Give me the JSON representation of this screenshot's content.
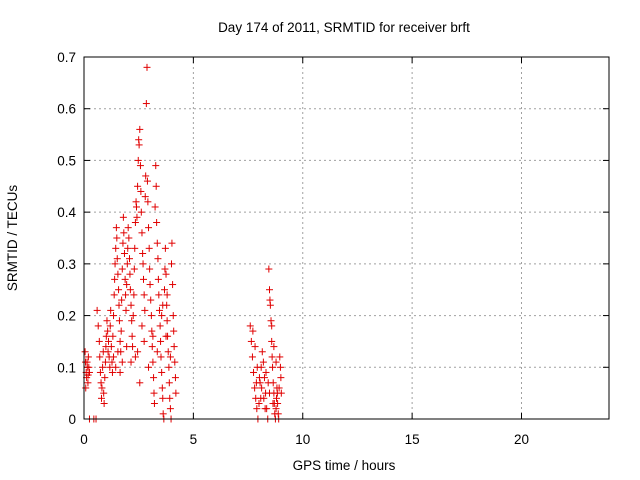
{
  "chart_data": {
    "type": "scatter",
    "title": "Day 174 of 2011, SRMTID for receiver brft",
    "xlabel": "GPS time / hours",
    "ylabel": "SRMTID / TECUs",
    "xlim": [
      0,
      24
    ],
    "ylim": [
      0,
      0.7
    ],
    "xticks": [
      0,
      5,
      10,
      15,
      20
    ],
    "xtick_labels": [
      "0",
      "5",
      "10",
      "15",
      "20"
    ],
    "yticks": [
      0,
      0.1,
      0.2,
      0.3,
      0.4,
      0.5,
      0.6,
      0.7
    ],
    "ytick_labels": [
      "0",
      "0.1",
      "0.2",
      "0.3",
      "0.4",
      "0.5",
      "0.6",
      "0.7"
    ],
    "grid": true,
    "marker": "+",
    "color": "#e00000",
    "series": [
      {
        "name": "SRMTID",
        "points": [
          [
            0.05,
            0.13
          ],
          [
            0.07,
            0.11
          ],
          [
            0.1,
            0.09
          ],
          [
            0.12,
            0.08
          ],
          [
            0.15,
            0.1
          ],
          [
            0.18,
            0.07
          ],
          [
            0.2,
            0.12
          ],
          [
            0.22,
            0.1
          ],
          [
            0.25,
            0.09
          ],
          [
            0.08,
            0.06
          ],
          [
            0.14,
            0.11
          ],
          [
            0.19,
            0.085
          ],
          [
            0.25,
            0
          ],
          [
            0.45,
            0
          ],
          [
            0.55,
            0
          ],
          [
            0.6,
            0.21
          ],
          [
            0.65,
            0.18
          ],
          [
            0.7,
            0.15
          ],
          [
            0.72,
            0.12
          ],
          [
            0.75,
            0.09
          ],
          [
            0.78,
            0.07
          ],
          [
            0.8,
            0.04
          ],
          [
            0.82,
            0.06
          ],
          [
            0.85,
            0.1
          ],
          [
            0.88,
            0.13
          ],
          [
            0.9,
            0.05
          ],
          [
            0.92,
            0.03
          ],
          [
            0.95,
            0.08
          ],
          [
            0.98,
            0.11
          ],
          [
            1.0,
            0.14
          ],
          [
            1.02,
            0.16
          ],
          [
            1.05,
            0.19
          ],
          [
            1.08,
            0.17
          ],
          [
            1.1,
            0.13
          ],
          [
            1.12,
            0.15
          ],
          [
            1.15,
            0.12
          ],
          [
            1.18,
            0.1
          ],
          [
            1.2,
            0.18
          ],
          [
            1.22,
            0.21
          ],
          [
            1.25,
            0.14
          ],
          [
            1.28,
            0.11
          ],
          [
            1.3,
            0.09
          ],
          [
            1.32,
            0.16
          ],
          [
            1.35,
            0.2
          ],
          [
            1.38,
            0.24
          ],
          [
            1.4,
            0.27
          ],
          [
            1.42,
            0.3
          ],
          [
            1.45,
            0.33
          ],
          [
            1.48,
            0.37
          ],
          [
            1.5,
            0.35
          ],
          [
            1.52,
            0.31
          ],
          [
            1.55,
            0.28
          ],
          [
            1.58,
            0.25
          ],
          [
            1.6,
            0.22
          ],
          [
            1.62,
            0.19
          ],
          [
            1.65,
            0.15
          ],
          [
            1.68,
            0.13
          ],
          [
            1.7,
            0.17
          ],
          [
            1.72,
            0.23
          ],
          [
            1.75,
            0.29
          ],
          [
            1.78,
            0.34
          ],
          [
            1.8,
            0.39
          ],
          [
            1.82,
            0.36
          ],
          [
            1.85,
            0.32
          ],
          [
            1.88,
            0.27
          ],
          [
            1.9,
            0.24
          ],
          [
            1.92,
            0.21
          ],
          [
            1.95,
            0.26
          ],
          [
            1.98,
            0.3
          ],
          [
            2.0,
            0.33
          ],
          [
            2.02,
            0.37
          ],
          [
            2.05,
            0.35
          ],
          [
            2.08,
            0.31
          ],
          [
            2.1,
            0.28
          ],
          [
            2.12,
            0.25
          ],
          [
            2.15,
            0.22
          ],
          [
            2.18,
            0.19
          ],
          [
            2.2,
            0.16
          ],
          [
            2.22,
            0.14
          ],
          [
            2.25,
            0.2
          ],
          [
            2.28,
            0.24
          ],
          [
            2.3,
            0.29
          ],
          [
            2.32,
            0.33
          ],
          [
            2.35,
            0.38
          ],
          [
            2.38,
            0.42
          ],
          [
            2.4,
            0.41
          ],
          [
            2.42,
            0.39
          ],
          [
            2.45,
            0.45
          ],
          [
            2.48,
            0.5
          ],
          [
            2.5,
            0.54
          ],
          [
            2.52,
            0.53
          ],
          [
            2.55,
            0.56
          ],
          [
            2.58,
            0.49
          ],
          [
            2.6,
            0.44
          ],
          [
            2.62,
            0.4
          ],
          [
            2.65,
            0.36
          ],
          [
            2.68,
            0.32
          ],
          [
            2.7,
            0.3
          ],
          [
            2.72,
            0.27
          ],
          [
            2.75,
            0.24
          ],
          [
            2.78,
            0.21
          ],
          [
            2.8,
            0.43
          ],
          [
            2.82,
            0.47
          ],
          [
            2.85,
            0.61
          ],
          [
            2.88,
            0.68
          ],
          [
            2.9,
            0.46
          ],
          [
            2.92,
            0.42
          ],
          [
            2.95,
            0.37
          ],
          [
            2.98,
            0.33
          ],
          [
            3.0,
            0.29
          ],
          [
            3.02,
            0.26
          ],
          [
            3.05,
            0.23
          ],
          [
            3.08,
            0.2
          ],
          [
            3.1,
            0.17
          ],
          [
            3.12,
            0.14
          ],
          [
            3.15,
            0.11
          ],
          [
            3.18,
            0.08
          ],
          [
            3.2,
            0.05
          ],
          [
            3.22,
            0.03
          ],
          [
            3.25,
            0.41
          ],
          [
            3.28,
            0.49
          ],
          [
            3.3,
            0.45
          ],
          [
            3.32,
            0.38
          ],
          [
            3.35,
            0.34
          ],
          [
            3.38,
            0.31
          ],
          [
            3.4,
            0.27
          ],
          [
            3.42,
            0.24
          ],
          [
            3.45,
            0.21
          ],
          [
            3.48,
            0.18
          ],
          [
            3.5,
            0.15
          ],
          [
            3.52,
            0.12
          ],
          [
            3.55,
            0.09
          ],
          [
            3.58,
            0.06
          ],
          [
            3.6,
            0.04
          ],
          [
            3.62,
            0.01
          ],
          [
            3.65,
            0.0
          ],
          [
            3.68,
            0.25
          ],
          [
            3.7,
            0.29
          ],
          [
            3.72,
            0.33
          ],
          [
            3.75,
            0.28
          ],
          [
            3.78,
            0.22
          ],
          [
            3.8,
            0.19
          ],
          [
            3.82,
            0.16
          ],
          [
            3.85,
            0.13
          ],
          [
            3.88,
            0.1
          ],
          [
            3.9,
            0.07
          ],
          [
            3.92,
            0.04
          ],
          [
            3.95,
            0.02
          ],
          [
            3.98,
            0.0
          ],
          [
            4.0,
            0.3
          ],
          [
            4.02,
            0.34
          ],
          [
            4.05,
            0.26
          ],
          [
            4.08,
            0.2
          ],
          [
            4.1,
            0.17
          ],
          [
            4.12,
            0.14
          ],
          [
            4.15,
            0.11
          ],
          [
            4.18,
            0.08
          ],
          [
            4.2,
            0.05
          ],
          [
            1.35,
            0.12
          ],
          [
            1.45,
            0.1
          ],
          [
            1.55,
            0.13
          ],
          [
            1.65,
            0.09
          ],
          [
            1.75,
            0.11
          ],
          [
            1.95,
            0.14
          ],
          [
            2.15,
            0.11
          ],
          [
            2.35,
            0.12
          ],
          [
            2.55,
            0.07
          ],
          [
            2.75,
            0.15
          ],
          [
            2.95,
            0.1
          ],
          [
            3.15,
            0.16
          ],
          [
            3.35,
            0.13
          ],
          [
            3.55,
            0.2
          ],
          [
            3.75,
            0.16
          ],
          [
            3.95,
            0.12
          ],
          [
            3.6,
            0.22
          ],
          [
            3.8,
            0.24
          ],
          [
            2.45,
            0.13
          ],
          [
            2.65,
            0.18
          ],
          [
            7.6,
            0.18
          ],
          [
            7.65,
            0.15
          ],
          [
            7.7,
            0.12
          ],
          [
            7.75,
            0.09
          ],
          [
            7.8,
            0.06
          ],
          [
            7.85,
            0.04
          ],
          [
            7.9,
            0.02
          ],
          [
            7.95,
            0.0
          ],
          [
            8.0,
            0.03
          ],
          [
            8.05,
            0.07
          ],
          [
            8.1,
            0.1
          ],
          [
            8.15,
            0.13
          ],
          [
            8.2,
            0.11
          ],
          [
            8.25,
            0.08
          ],
          [
            8.3,
            0.05
          ],
          [
            8.35,
            0.02
          ],
          [
            8.4,
            0.0
          ],
          [
            8.45,
            0.29
          ],
          [
            8.48,
            0.25
          ],
          [
            8.5,
            0.23
          ],
          [
            8.52,
            0.22
          ],
          [
            8.55,
            0.19
          ],
          [
            8.58,
            0.15
          ],
          [
            8.6,
            0.12
          ],
          [
            8.62,
            0.1
          ],
          [
            8.65,
            0.07
          ],
          [
            8.68,
            0.05
          ],
          [
            8.7,
            0.03
          ],
          [
            8.72,
            0.01
          ],
          [
            8.75,
            0.0
          ],
          [
            8.78,
            0.02
          ],
          [
            8.8,
            0.04
          ],
          [
            8.82,
            0.06
          ],
          [
            8.85,
            0.03
          ],
          [
            8.88,
            0.01
          ],
          [
            8.9,
            0.0
          ],
          [
            8.95,
            0.12
          ],
          [
            8.98,
            0.1
          ],
          [
            9.0,
            0.08
          ],
          [
            9.02,
            0.05
          ],
          [
            7.72,
            0.17
          ],
          [
            7.82,
            0.14
          ],
          [
            7.92,
            0.1
          ],
          [
            8.02,
            0.08
          ],
          [
            8.12,
            0.06
          ],
          [
            8.22,
            0.04
          ],
          [
            8.32,
            0.09
          ],
          [
            8.42,
            0.07
          ],
          [
            8.58,
            0.18
          ],
          [
            8.68,
            0.14
          ],
          [
            8.78,
            0.11
          ],
          [
            8.92,
            0.06
          ],
          [
            7.88,
            0.07
          ],
          [
            8.08,
            0.04
          ],
          [
            8.28,
            0.02
          ],
          [
            8.48,
            0.05
          ],
          [
            8.64,
            0.03
          ],
          [
            8.84,
            0.05
          ]
        ]
      }
    ]
  }
}
